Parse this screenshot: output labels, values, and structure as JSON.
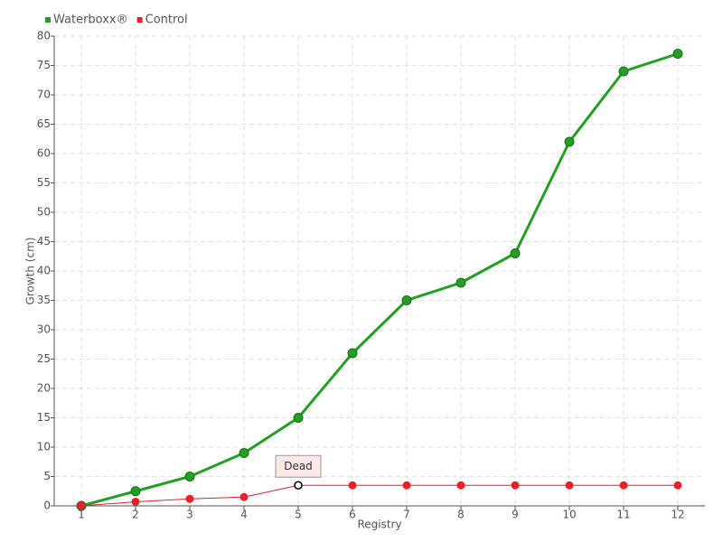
{
  "chart_data": {
    "type": "line",
    "categories": [
      "1",
      "2",
      "3",
      "4",
      "5",
      "6",
      "7",
      "8",
      "9",
      "10",
      "11",
      "12"
    ],
    "series": [
      {
        "name": "Waterboxx®",
        "color": "#22a022",
        "values": [
          0,
          2.5,
          5,
          9,
          15,
          26,
          35,
          38,
          43,
          62,
          74,
          77
        ]
      },
      {
        "name": "Control",
        "color": "#e8202a",
        "values": [
          0,
          0.7,
          1.2,
          1.5,
          3.5,
          3.5,
          3.5,
          3.5,
          3.5,
          3.5,
          3.5,
          3.5
        ]
      }
    ],
    "x_label": "Registry",
    "y_label": "Growth (cm)",
    "ylim": [
      0,
      80
    ],
    "yticks": [
      0,
      5,
      10,
      15,
      20,
      25,
      30,
      35,
      40,
      45,
      50,
      55,
      60,
      65,
      70,
      75,
      80
    ],
    "grid": true,
    "legend": "top-left",
    "annotation": {
      "text": "Dead",
      "x": "5"
    }
  }
}
